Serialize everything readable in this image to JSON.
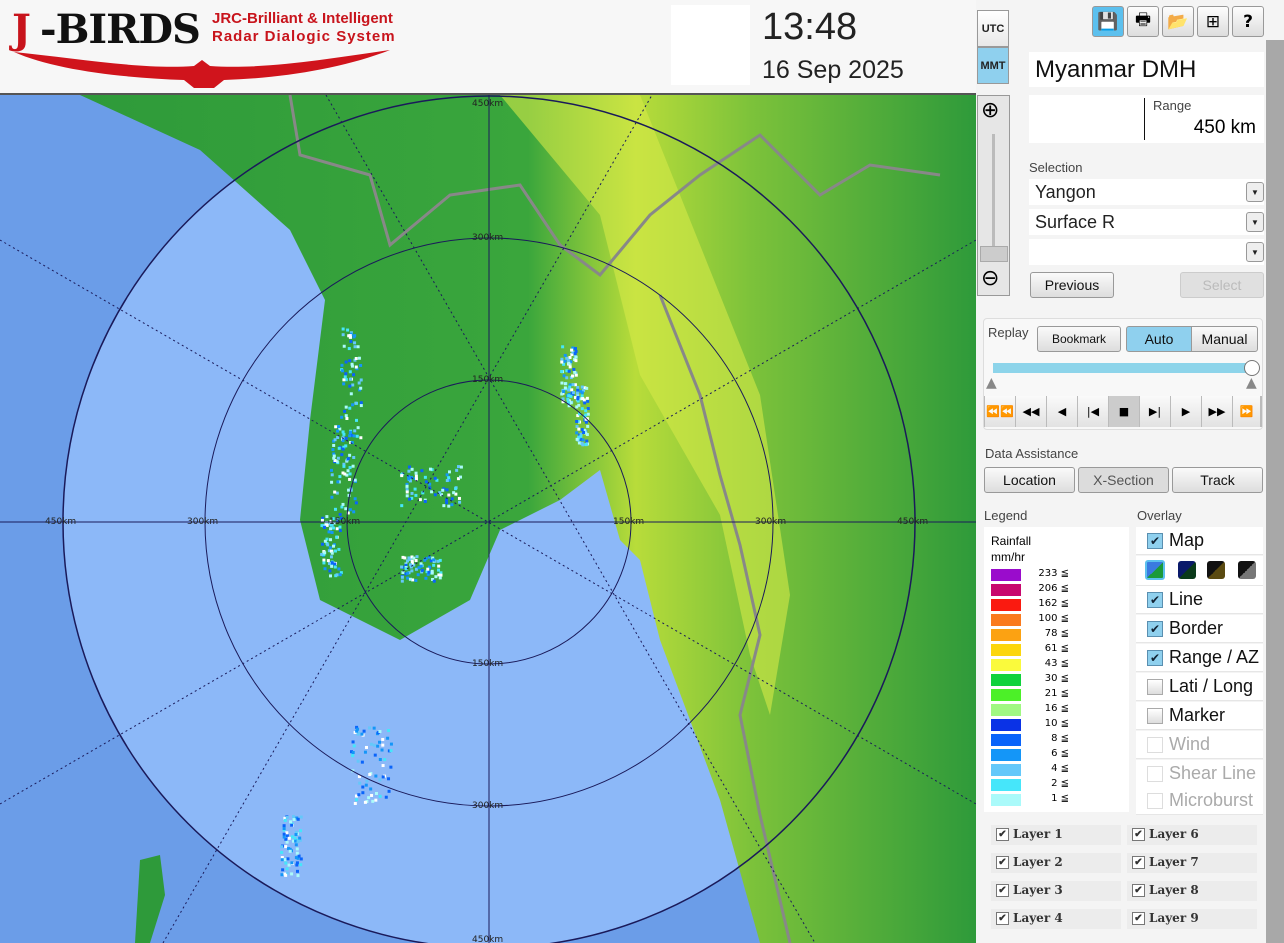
{
  "header": {
    "logo_text": "J-BIRDS",
    "logo_sub1": "JRC-Brilliant & Intelligent",
    "logo_sub2": "Radar Dialogic System",
    "time": "13:48",
    "date": "16 Sep 2025",
    "tz_utc": "UTC",
    "tz_mmt": "MMT",
    "tz_active": "MMT"
  },
  "toolbar": [
    {
      "icon": "save-icon",
      "glyph": "💾",
      "active": true
    },
    {
      "icon": "print-icon",
      "glyph": "🖶"
    },
    {
      "icon": "folder-open-icon",
      "glyph": "📂"
    },
    {
      "icon": "add-window-icon",
      "glyph": "⊞"
    },
    {
      "icon": "help-icon",
      "glyph": "?"
    }
  ],
  "station": "Myanmar DMH",
  "range": {
    "label": "Range",
    "value": "450 km"
  },
  "selection": {
    "label": "Selection",
    "site": "Yangon",
    "product": "Surface R",
    "third": "",
    "previous": "Previous",
    "select": "Select"
  },
  "replay": {
    "label": "Replay",
    "bookmark": "Bookmark",
    "auto": "Auto",
    "manual": "Manual",
    "mode": "Auto",
    "position": 1.0
  },
  "data_assistance": {
    "label": "Data Assistance",
    "location": "Location",
    "xsection": "X-Section",
    "track": "Track"
  },
  "legend": {
    "label": "Legend",
    "title1": "Rainfall",
    "title2": "mm/hr",
    "items": [
      {
        "v": "233 ≦",
        "c": "#9a0ccc"
      },
      {
        "v": "206 ≦",
        "c": "#c8086e"
      },
      {
        "v": "162 ≦",
        "c": "#fa1a10"
      },
      {
        "v": "100 ≦",
        "c": "#fa7a1e"
      },
      {
        "v": "78 ≦",
        "c": "#fca212"
      },
      {
        "v": "61 ≦",
        "c": "#fcd60c"
      },
      {
        "v": "43 ≦",
        "c": "#fafa3c"
      },
      {
        "v": "30 ≦",
        "c": "#10d23c"
      },
      {
        "v": "21 ≦",
        "c": "#4cf028"
      },
      {
        "v": "16 ≦",
        "c": "#a0f882"
      },
      {
        "v": "10 ≦",
        "c": "#0a32e6"
      },
      {
        "v": "8 ≦",
        "c": "#0a64fa"
      },
      {
        "v": "6 ≦",
        "c": "#1496f8"
      },
      {
        "v": "4 ≦",
        "c": "#64c8fa"
      },
      {
        "v": "2 ≦",
        "c": "#46e6fa"
      },
      {
        "v": "1 ≦",
        "c": "#aafafa"
      }
    ]
  },
  "overlay": {
    "label": "Overlay",
    "items": [
      {
        "label": "Map",
        "checked": true,
        "enabled": true
      },
      {
        "label": "Line",
        "checked": true,
        "enabled": true
      },
      {
        "label": "Border",
        "checked": true,
        "enabled": true
      },
      {
        "label": "Range / AZ",
        "checked": true,
        "enabled": true
      },
      {
        "label": "Lati / Long",
        "checked": false,
        "enabled": true
      },
      {
        "label": "Marker",
        "checked": false,
        "enabled": true
      },
      {
        "label": "Wind",
        "checked": false,
        "enabled": false
      },
      {
        "label": "Shear Line",
        "checked": false,
        "enabled": false
      },
      {
        "label": "Microburst",
        "checked": false,
        "enabled": false
      }
    ],
    "map_styles": [
      "blue-green",
      "navy-green",
      "black-olive",
      "black-gray"
    ],
    "map_style_selected": 0
  },
  "layers": [
    {
      "label": "Layer 1",
      "checked": true
    },
    {
      "label": "Layer 2",
      "checked": true
    },
    {
      "label": "Layer 3",
      "checked": true
    },
    {
      "label": "Layer 4",
      "checked": true
    },
    {
      "label": "Layer 6",
      "checked": true
    },
    {
      "label": "Layer 7",
      "checked": true
    },
    {
      "label": "Layer 8",
      "checked": true
    },
    {
      "label": "Layer 9",
      "checked": true
    }
  ],
  "map": {
    "range_labels": {
      "top": [
        "450km",
        "300km",
        "150km"
      ],
      "left": [
        "450km",
        "300km",
        "150km"
      ],
      "right": [
        "150km",
        "300km",
        "450km"
      ],
      "bottom": [
        "150km",
        "300km",
        "450km"
      ]
    }
  }
}
